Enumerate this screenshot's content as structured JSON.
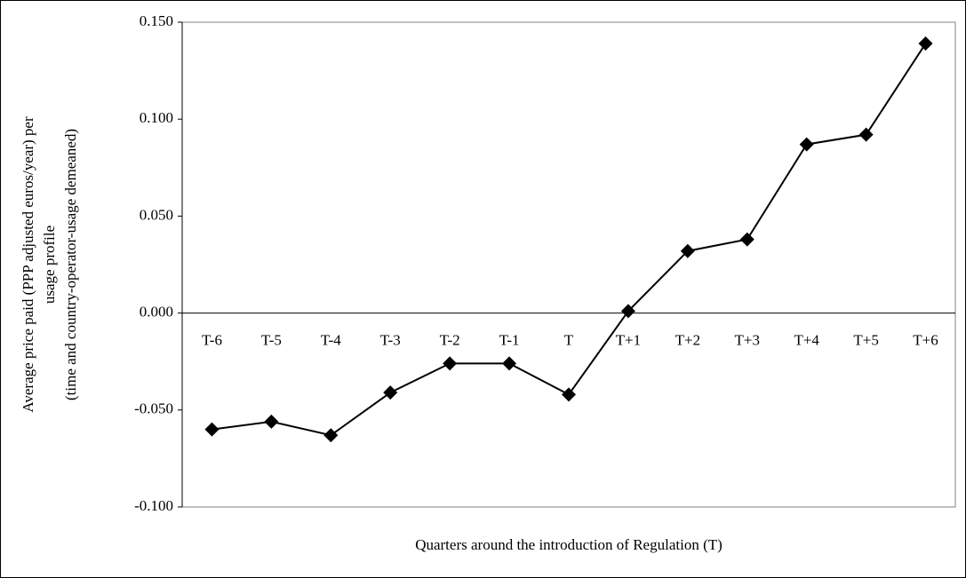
{
  "chart_data": {
    "type": "line",
    "y_label_lines": [
      "Average price paid (PPP adjusted euros/year) per",
      "usage profile",
      "(time and country-operator-usage demeaned)"
    ],
    "x_label": "Quarters around the introduction of Regulation (T)",
    "categories": [
      "T-6",
      "T-5",
      "T-4",
      "T-3",
      "T-2",
      "T-1",
      "T",
      "T+1",
      "T+2",
      "T+3",
      "T+4",
      "T+5",
      "T+6"
    ],
    "values": [
      -0.06,
      -0.056,
      -0.063,
      -0.041,
      -0.026,
      -0.026,
      -0.042,
      0.001,
      0.032,
      0.038,
      0.087,
      0.092,
      0.139
    ],
    "color": "#000000",
    "ylim": [
      -0.1,
      0.15
    ],
    "yticks": [
      {
        "value": -0.1,
        "label": "-0.100"
      },
      {
        "value": -0.05,
        "label": "-0.050"
      },
      {
        "value": 0,
        "label": "0.000"
      },
      {
        "value": 0.05,
        "label": "0.050"
      },
      {
        "value": 0.1,
        "label": "0.100"
      },
      {
        "value": 0.15,
        "label": "0.150"
      }
    ],
    "grid": false
  }
}
